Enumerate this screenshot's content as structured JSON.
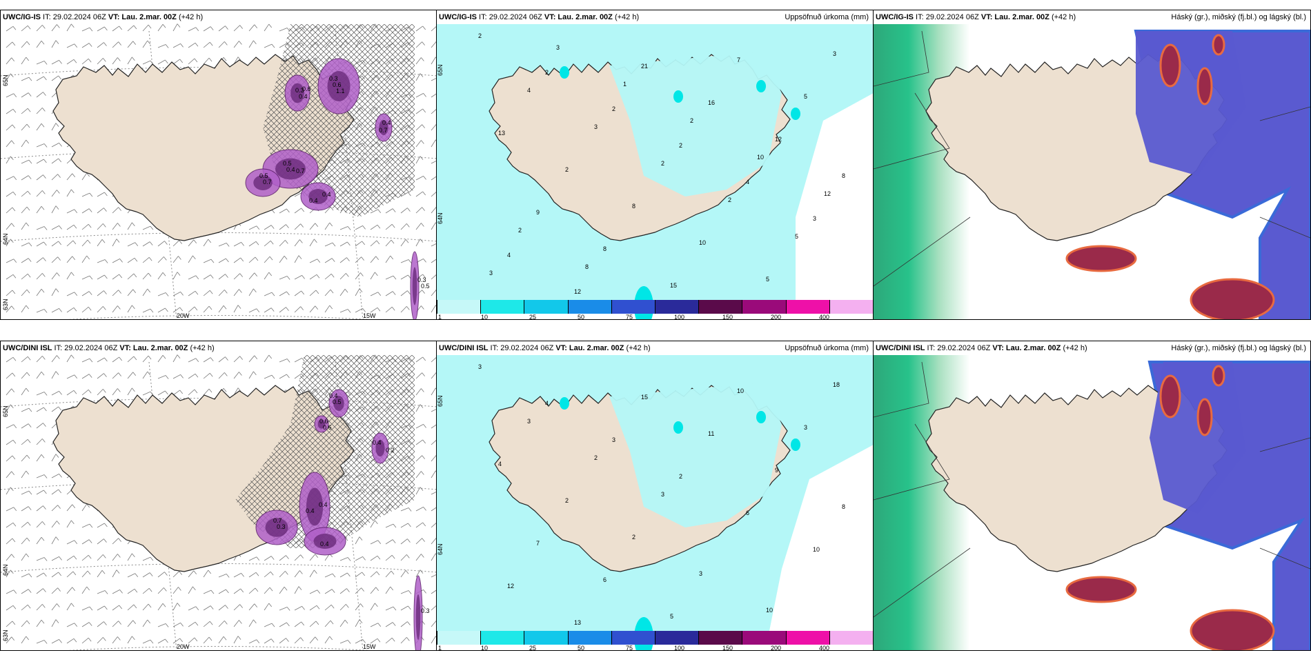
{
  "colors": {
    "land": "#ede0d0",
    "precip_light": "#b4f7f7",
    "precip_mid": "#00e6e6",
    "purple": "#8a3a9a",
    "cloud_high": "#2ea87a",
    "cloud_mid": "#5a5ad0",
    "cloud_low": "#7a1a3a"
  },
  "panels": [
    {
      "id": "p1",
      "model": "UWC/IG-IS",
      "it": "IT: 29.02.2024 06Z",
      "vt_label": "VT:",
      "vt": "Lau. 2.mar. 00Z",
      "lead": "(+42 h)",
      "right": "",
      "lat_labels": [
        "65N",
        "64N",
        "63N"
      ],
      "lon_labels": [
        "20W",
        "15W"
      ],
      "numbers": [
        "0.3",
        "0.3",
        "0.7",
        "0.5",
        "0.4",
        "0.7",
        "0.3",
        "0.6",
        "0.4",
        "0.5",
        "0.7",
        "0.4",
        "0.4",
        "0.5",
        "1.1",
        "0.6",
        "0.4"
      ]
    },
    {
      "id": "p2",
      "model": "UWC/IG-IS",
      "it": "IT: 29.02.2024 06Z",
      "vt_label": "VT:",
      "vt": "Lau. 2.mar. 00Z",
      "lead": "(+42 h)",
      "right": "Uppsöfnuð úrkoma (mm)",
      "lat_labels": [
        "65N",
        "64N"
      ],
      "numbers": [
        "2",
        "2",
        "2",
        "2",
        "4",
        "3",
        "4",
        "12",
        "21",
        "16",
        "12",
        "8",
        "9",
        "8",
        "15",
        "7",
        "5",
        "13",
        "2",
        "8",
        "10",
        "5",
        "3",
        "4",
        "3",
        "2",
        "2",
        "5",
        "3",
        "3",
        "1",
        "2",
        "10",
        "12",
        "2",
        "8"
      ]
    },
    {
      "id": "p3",
      "model": "UWC/IG-IS",
      "it": "IT: 29.02.2024 06Z",
      "vt_label": "VT:",
      "vt": "Lau. 2.mar. 00Z",
      "lead": "(+42 h)",
      "right": "Háský (gr.), miðský (fj.bl.) og lágský (bl.)"
    },
    {
      "id": "p4",
      "model": "UWC/DINI ISL",
      "it": "IT: 29.02.2024 06Z",
      "vt_label": "VT:",
      "vt": "Lau. 2.mar. 00Z",
      "lead": "(+42 h)",
      "right": "",
      "lat_labels": [
        "65N",
        "64N",
        "63N"
      ],
      "lon_labels": [
        "20W",
        "15W"
      ],
      "numbers": [
        "0.4",
        "0.6",
        "0.2",
        "0.7",
        "0.4",
        "0.4",
        "0.3",
        "0.5",
        "0.6",
        "0.4",
        "0.3",
        "0.4"
      ]
    },
    {
      "id": "p5",
      "model": "UWC/DINI ISL",
      "it": "IT: 29.02.2024 06Z",
      "vt_label": "VT:",
      "vt": "Lau. 2.mar. 00Z",
      "lead": "(+42 h)",
      "right": "Uppsöfnuð úrkoma (mm)",
      "lat_labels": [
        "65N",
        "64N"
      ],
      "numbers": [
        "3",
        "4",
        "3",
        "2",
        "6",
        "10",
        "12",
        "13",
        "15",
        "11",
        "9",
        "8",
        "7",
        "6",
        "5",
        "10",
        "3",
        "4",
        "2",
        "2",
        "3",
        "10",
        "18",
        "3",
        "2",
        "3"
      ]
    },
    {
      "id": "p6",
      "model": "UWC/DINI ISL",
      "it": "IT: 29.02.2024 06Z",
      "vt_label": "VT:",
      "vt": "Lau. 2.mar. 00Z",
      "lead": "(+42 h)",
      "right": "Háský (gr.), miðský (fj.bl.) og lágský (bl.)"
    }
  ],
  "colorbar": {
    "labels": [
      "1",
      "10",
      "25",
      "50",
      "75",
      "100",
      "150",
      "200",
      "400"
    ],
    "colors": [
      "#c6f8f8",
      "#1ee8e8",
      "#12c8ea",
      "#1a8ce8",
      "#3050d0",
      "#2a2a9a",
      "#5a0a4a",
      "#9a0a7a",
      "#ee10a8",
      "#f4b0f0"
    ]
  }
}
